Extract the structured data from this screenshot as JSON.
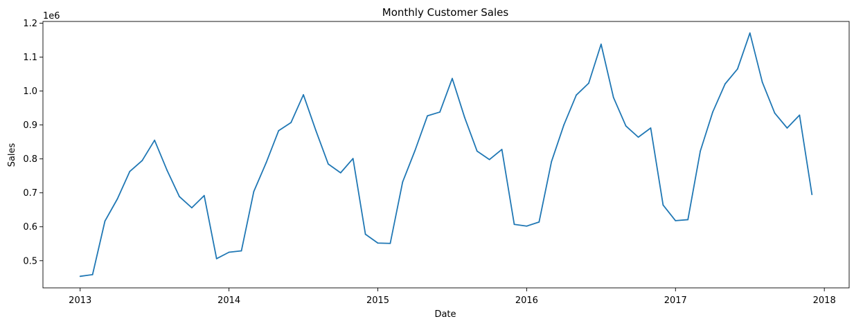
{
  "chart_data": {
    "type": "line",
    "title": "Monthly Customer Sales",
    "xlabel": "Date",
    "ylabel": "Sales",
    "y_offset_label": "1e6",
    "x_tick_labels": [
      "2013",
      "2014",
      "2015",
      "2016",
      "2017",
      "2018"
    ],
    "y_tick_labels": [
      "0.5",
      "0.6",
      "0.7",
      "0.8",
      "0.9",
      "1.0",
      "1.1",
      "1.2"
    ],
    "y_ticks": [
      0.5,
      0.6,
      0.7,
      0.8,
      0.9,
      1.0,
      1.1,
      1.2
    ],
    "xlim": [
      "2012-10",
      "2018-03"
    ],
    "ylim": [
      0.42,
      1.205
    ],
    "y_scale_multiplier": 1000000,
    "grid": false,
    "series": [
      {
        "color": "#1f77b4",
        "x": [
          "2013-01",
          "2013-02",
          "2013-03",
          "2013-04",
          "2013-05",
          "2013-06",
          "2013-07",
          "2013-08",
          "2013-09",
          "2013-10",
          "2013-11",
          "2013-12",
          "2014-01",
          "2014-02",
          "2014-03",
          "2014-04",
          "2014-05",
          "2014-06",
          "2014-07",
          "2014-08",
          "2014-09",
          "2014-10",
          "2014-11",
          "2014-12",
          "2015-01",
          "2015-02",
          "2015-03",
          "2015-04",
          "2015-05",
          "2015-06",
          "2015-07",
          "2015-08",
          "2015-09",
          "2015-10",
          "2015-11",
          "2015-12",
          "2016-01",
          "2016-02",
          "2016-03",
          "2016-04",
          "2016-05",
          "2016-06",
          "2016-07",
          "2016-08",
          "2016-09",
          "2016-10",
          "2016-11",
          "2016-12",
          "2017-01",
          "2017-02",
          "2017-03",
          "2017-04",
          "2017-05",
          "2017-06",
          "2017-07",
          "2017-08",
          "2017-09",
          "2017-10",
          "2017-11",
          "2017-12"
        ],
        "values": [
          0.454,
          0.459,
          0.617,
          0.682,
          0.763,
          0.795,
          0.855,
          0.767,
          0.689,
          0.656,
          0.692,
          0.506,
          0.525,
          0.529,
          0.704,
          0.789,
          0.883,
          0.907,
          0.989,
          0.884,
          0.785,
          0.759,
          0.801,
          0.578,
          0.552,
          0.551,
          0.732,
          0.825,
          0.927,
          0.938,
          1.037,
          0.922,
          0.823,
          0.798,
          0.828,
          0.607,
          0.602,
          0.614,
          0.792,
          0.9,
          0.988,
          1.023,
          1.138,
          0.981,
          0.897,
          0.864,
          0.891,
          0.664,
          0.618,
          0.621,
          0.823,
          0.938,
          1.021,
          1.065,
          1.171,
          1.026,
          0.935,
          0.891,
          0.929,
          0.695
        ]
      }
    ]
  }
}
